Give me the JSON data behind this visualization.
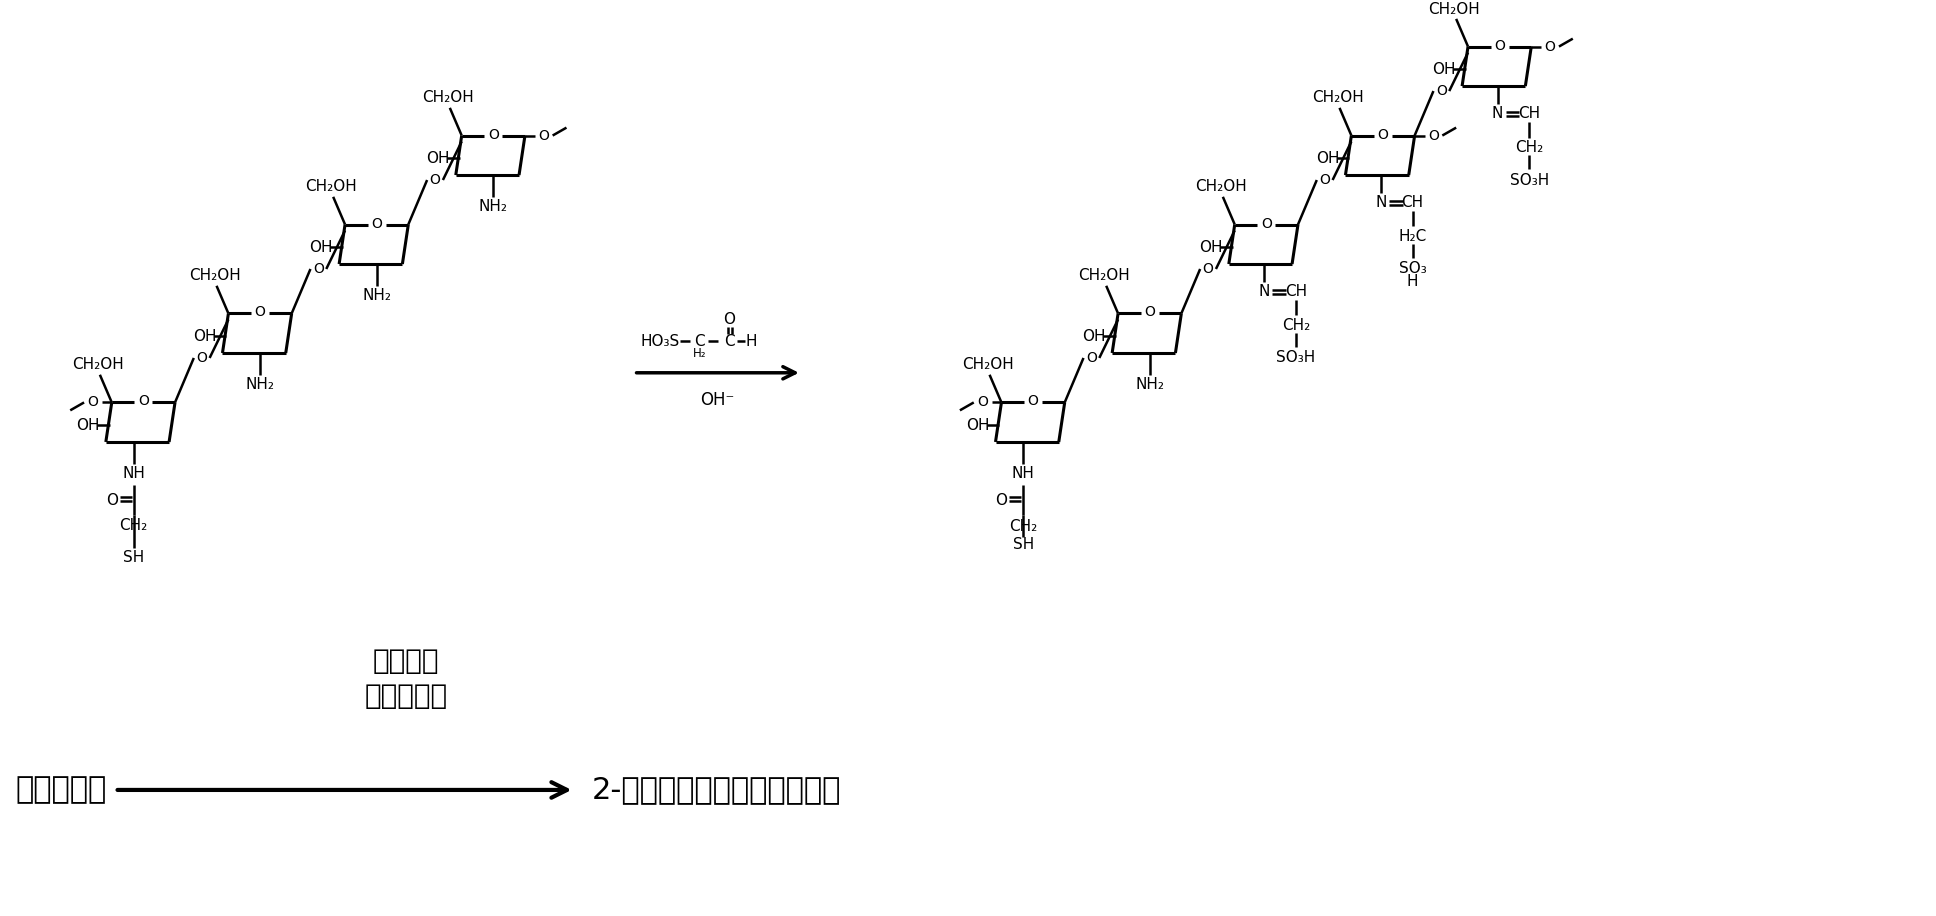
{
  "background_color": "#ffffff",
  "figsize": [
    19.36,
    9.16
  ],
  "dpi": 100,
  "title_line1": "乙醒磺酸",
  "title_line2": "碱性条件下",
  "label_left": "疋基壳聚糖",
  "label_right": "2-亚胺基乙醒磺酸疋基壳聚糖"
}
